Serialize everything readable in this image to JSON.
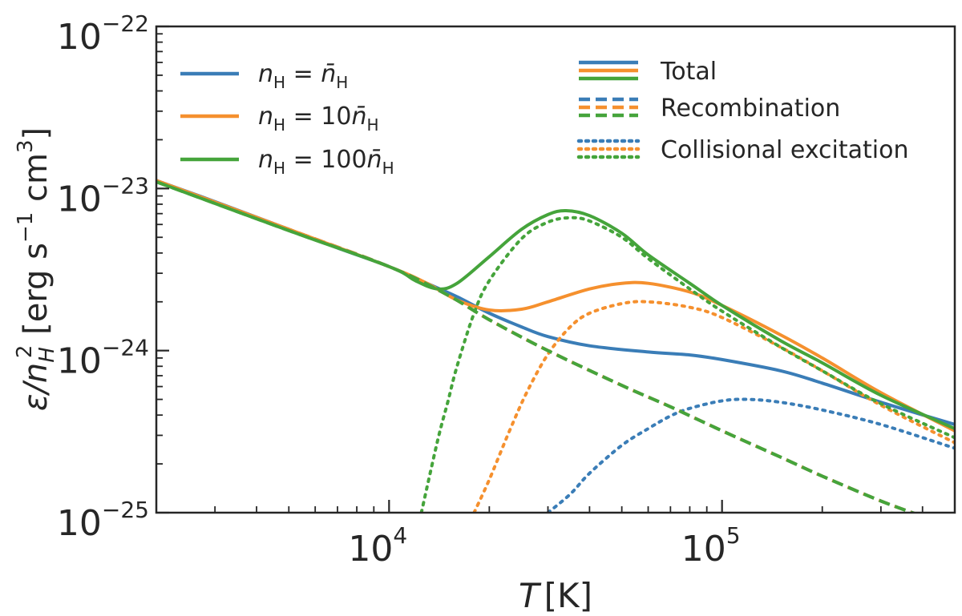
{
  "chart_data": {
    "type": "line",
    "title": "",
    "xlabel": {
      "main": "T",
      "unit": "[K]"
    },
    "ylabel": {
      "main": "ε/n",
      "sub": "H",
      "sup": "2",
      "unit_open": " [erg s",
      "unit_exp1": "−1",
      "unit_mid": " cm",
      "unit_exp2": "3",
      "unit_close": "]"
    },
    "xscale": "log",
    "yscale": "log",
    "xlim": [
      2000,
      500000
    ],
    "ylim": [
      1e-25,
      1e-22
    ],
    "grid": false,
    "x_ticks": [
      {
        "value": 10000,
        "base": "10",
        "exp": "4"
      },
      {
        "value": 100000,
        "base": "10",
        "exp": "5"
      }
    ],
    "y_ticks": [
      {
        "value": 1e-25,
        "base": "10",
        "exp": "−25"
      },
      {
        "value": 1e-24,
        "base": "10",
        "exp": "−24"
      },
      {
        "value": 1e-23,
        "base": "10",
        "exp": "−23"
      },
      {
        "value": 1e-22,
        "base": "10",
        "exp": "−22"
      }
    ],
    "colors": {
      "blue": "#3a7db7",
      "orange": "#f5902e",
      "green": "#45a43b"
    },
    "legend": {
      "placement": "top",
      "density": [
        {
          "pre": "n",
          "sub": "H",
          "mid": " = ",
          "factor": "",
          "post": "n̄",
          "post_sub": "H",
          "color": "#3a7db7"
        },
        {
          "pre": "n",
          "sub": "H",
          "mid": " = ",
          "factor": "10",
          "post": "n̄",
          "post_sub": "H",
          "color": "#f5902e"
        },
        {
          "pre": "n",
          "sub": "H",
          "mid": " = ",
          "factor": "100",
          "post": "n̄",
          "post_sub": "H",
          "color": "#45a43b"
        }
      ],
      "components": [
        {
          "label": "Total",
          "style": "solid"
        },
        {
          "label": "Recombination",
          "style": "dashed"
        },
        {
          "label": "Collisional excitation",
          "style": "dotted"
        }
      ]
    },
    "series": [
      {
        "density": "1",
        "component": "total",
        "color": "#3a7db7",
        "style": "solid",
        "points": [
          [
            2000,
            1.12e-23
          ],
          [
            3000,
            8.3e-24
          ],
          [
            5000,
            5.6e-24
          ],
          [
            7000,
            4.3e-24
          ],
          [
            10000,
            3.3e-24
          ],
          [
            13000,
            2.6e-24
          ],
          [
            16000,
            2.15e-24
          ],
          [
            20000,
            1.7e-24
          ],
          [
            25000,
            1.4e-24
          ],
          [
            30000,
            1.22e-24
          ],
          [
            40000,
            1.07e-24
          ],
          [
            60000,
            9.8e-25
          ],
          [
            80000,
            9.4e-25
          ],
          [
            100000,
            8.8e-25
          ],
          [
            150000,
            7.5e-25
          ],
          [
            200000,
            6.3e-25
          ],
          [
            300000,
            4.8e-25
          ],
          [
            500000,
            3.5e-25
          ]
        ]
      },
      {
        "density": "1",
        "component": "recombination",
        "color": "#3a7db7",
        "style": "dashed",
        "points": [
          [
            2000,
            1.12e-23
          ],
          [
            5000,
            5.6e-24
          ],
          [
            10000,
            3.3e-24
          ],
          [
            15000,
            2.2e-24
          ],
          [
            20000,
            1.55e-24
          ],
          [
            30000,
            1e-24
          ],
          [
            50000,
            6.1e-25
          ],
          [
            70000,
            4.5e-25
          ],
          [
            100000,
            3.2e-25
          ],
          [
            150000,
            2.2e-25
          ],
          [
            200000,
            1.68e-25
          ],
          [
            300000,
            1.18e-25
          ],
          [
            400000,
            9.5e-26
          ]
        ]
      },
      {
        "density": "1",
        "component": "collisional",
        "color": "#3a7db7",
        "style": "dotted",
        "points": [
          [
            30000,
            1e-25
          ],
          [
            35000,
            1.3e-25
          ],
          [
            40000,
            1.75e-25
          ],
          [
            50000,
            2.6e-25
          ],
          [
            60000,
            3.3e-25
          ],
          [
            70000,
            3.95e-25
          ],
          [
            80000,
            4.4e-25
          ],
          [
            100000,
            4.9e-25
          ],
          [
            120000,
            5e-25
          ],
          [
            150000,
            4.8e-25
          ],
          [
            200000,
            4.3e-25
          ],
          [
            300000,
            3.5e-25
          ],
          [
            500000,
            2.5e-25
          ]
        ]
      },
      {
        "density": "10",
        "component": "total",
        "color": "#f5902e",
        "style": "solid",
        "points": [
          [
            2000,
            1.12e-23
          ],
          [
            5000,
            5.6e-24
          ],
          [
            10000,
            3.3e-24
          ],
          [
            13000,
            2.6e-24
          ],
          [
            16000,
            2.05e-24
          ],
          [
            20000,
            1.78e-24
          ],
          [
            25000,
            1.8e-24
          ],
          [
            30000,
            2e-24
          ],
          [
            40000,
            2.4e-24
          ],
          [
            50000,
            2.6e-24
          ],
          [
            60000,
            2.6e-24
          ],
          [
            80000,
            2.3e-24
          ],
          [
            100000,
            1.9e-24
          ],
          [
            150000,
            1.25e-24
          ],
          [
            200000,
            9e-25
          ],
          [
            300000,
            5.5e-25
          ],
          [
            500000,
            3.2e-25
          ]
        ]
      },
      {
        "density": "10",
        "component": "recombination",
        "color": "#f5902e",
        "style": "dashed",
        "points": [
          [
            2000,
            1.12e-23
          ],
          [
            5000,
            5.6e-24
          ],
          [
            10000,
            3.3e-24
          ],
          [
            15000,
            2.2e-24
          ],
          [
            20000,
            1.55e-24
          ],
          [
            30000,
            1e-24
          ],
          [
            50000,
            6.1e-25
          ],
          [
            70000,
            4.5e-25
          ],
          [
            100000,
            3.2e-25
          ],
          [
            150000,
            2.2e-25
          ],
          [
            200000,
            1.68e-25
          ],
          [
            300000,
            1.18e-25
          ],
          [
            400000,
            9.5e-26
          ]
        ]
      },
      {
        "density": "10",
        "component": "collisional",
        "color": "#f5902e",
        "style": "dotted",
        "points": [
          [
            18000,
            1e-25
          ],
          [
            20000,
            1.6e-25
          ],
          [
            23000,
            3.2e-25
          ],
          [
            26000,
            5.6e-25
          ],
          [
            30000,
            9.5e-25
          ],
          [
            35000,
            1.4e-24
          ],
          [
            40000,
            1.7e-24
          ],
          [
            50000,
            1.95e-24
          ],
          [
            60000,
            2e-24
          ],
          [
            80000,
            1.85e-24
          ],
          [
            100000,
            1.6e-24
          ],
          [
            150000,
            1.05e-24
          ],
          [
            200000,
            7.5e-25
          ],
          [
            300000,
            4.6e-25
          ],
          [
            500000,
            2.7e-25
          ]
        ]
      },
      {
        "density": "100",
        "component": "total",
        "color": "#45a43b",
        "style": "solid",
        "points": [
          [
            2000,
            1.1e-23
          ],
          [
            5000,
            5.5e-24
          ],
          [
            10000,
            3.3e-24
          ],
          [
            12000,
            2.7e-24
          ],
          [
            14000,
            2.4e-24
          ],
          [
            16000,
            2.6e-24
          ],
          [
            20000,
            3.8e-24
          ],
          [
            25000,
            5.6e-24
          ],
          [
            30000,
            6.9e-24
          ],
          [
            34000,
            7.3e-24
          ],
          [
            40000,
            6.8e-24
          ],
          [
            50000,
            5.3e-24
          ],
          [
            60000,
            3.9e-24
          ],
          [
            80000,
            2.6e-24
          ],
          [
            100000,
            1.9e-24
          ],
          [
            150000,
            1.15e-24
          ],
          [
            200000,
            8.4e-25
          ],
          [
            300000,
            5.3e-25
          ],
          [
            500000,
            3.3e-25
          ]
        ]
      },
      {
        "density": "100",
        "component": "recombination",
        "color": "#45a43b",
        "style": "dashed",
        "points": [
          [
            2000,
            1.1e-23
          ],
          [
            5000,
            5.5e-24
          ],
          [
            10000,
            3.3e-24
          ],
          [
            15000,
            2.2e-24
          ],
          [
            20000,
            1.55e-24
          ],
          [
            30000,
            1e-24
          ],
          [
            50000,
            6.1e-25
          ],
          [
            70000,
            4.5e-25
          ],
          [
            100000,
            3.2e-25
          ],
          [
            150000,
            2.2e-25
          ],
          [
            200000,
            1.68e-25
          ],
          [
            300000,
            1.18e-25
          ],
          [
            400000,
            9.5e-26
          ]
        ]
      },
      {
        "density": "100",
        "component": "collisional",
        "color": "#45a43b",
        "style": "dotted",
        "points": [
          [
            12500,
            1e-25
          ],
          [
            14000,
            2.8e-25
          ],
          [
            15000,
            4.8e-25
          ],
          [
            16000,
            8e-25
          ],
          [
            18000,
            1.7e-24
          ],
          [
            20000,
            2.7e-24
          ],
          [
            25000,
            4.9e-24
          ],
          [
            30000,
            6.2e-24
          ],
          [
            35000,
            6.6e-24
          ],
          [
            40000,
            6.3e-24
          ],
          [
            50000,
            5e-24
          ],
          [
            60000,
            3.7e-24
          ],
          [
            80000,
            2.4e-24
          ],
          [
            100000,
            1.75e-24
          ],
          [
            150000,
            1.05e-24
          ],
          [
            200000,
            7.5e-25
          ],
          [
            300000,
            4.7e-25
          ],
          [
            500000,
            2.9e-25
          ]
        ]
      }
    ]
  }
}
